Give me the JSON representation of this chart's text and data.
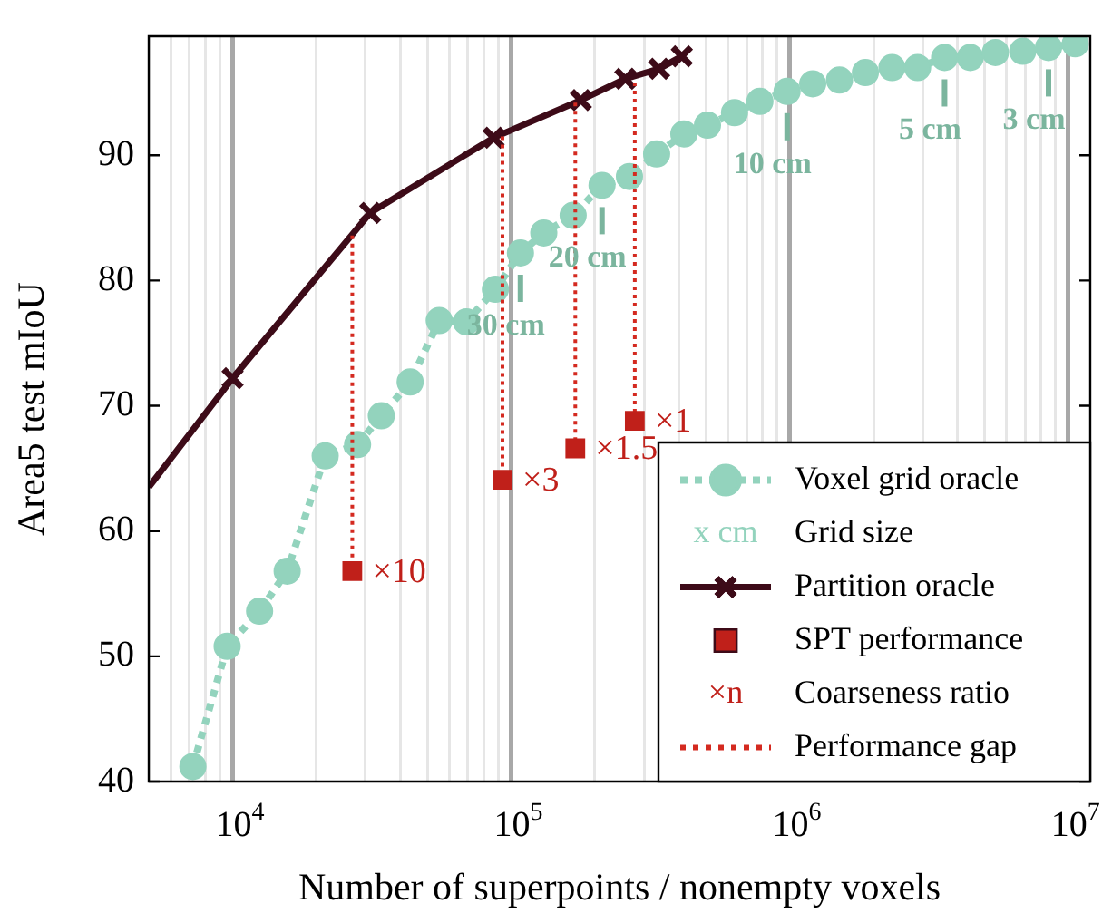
{
  "chart_data": {
    "type": "line",
    "xlabel": "Number of superpoints / nonempty voxels",
    "ylabel": "Area5 test mIoU",
    "log": "x",
    "grid": "x",
    "legend": "bottom right",
    "xlim": [
      5000,
      12000000
    ],
    "ylim": [
      40,
      99.5
    ],
    "xticks": [
      {
        "value": 5000,
        "label": null
      },
      {
        "value": 6000,
        "label": null
      },
      {
        "value": 7000,
        "label": null
      },
      {
        "value": 8000,
        "label": null
      },
      {
        "value": 9000,
        "label": null
      },
      {
        "value": 10000,
        "label": "10$^{4}$"
      },
      {
        "value": 20000,
        "label": null
      },
      {
        "value": 30000,
        "label": null
      },
      {
        "value": 40000,
        "label": null
      },
      {
        "value": 50000,
        "label": null
      },
      {
        "value": 60000,
        "label": null
      },
      {
        "value": 70000,
        "label": null
      },
      {
        "value": 80000,
        "label": null
      },
      {
        "value": 90000,
        "label": null
      },
      {
        "value": 100000,
        "label": "10$^{5}$"
      },
      {
        "value": 200000,
        "label": null
      },
      {
        "value": 300000,
        "label": null
      },
      {
        "value": 400000,
        "label": null
      },
      {
        "value": 500000,
        "label": null
      },
      {
        "value": 600000,
        "label": null
      },
      {
        "value": 700000,
        "label": null
      },
      {
        "value": 800000,
        "label": null
      },
      {
        "value": 900000,
        "label": null
      },
      {
        "value": 1000000,
        "label": "10$^{6}$"
      },
      {
        "value": 2000000,
        "label": null
      },
      {
        "value": 3000000,
        "label": null
      },
      {
        "value": 4000000,
        "label": null
      },
      {
        "value": 5000000,
        "label": null
      },
      {
        "value": 6000000,
        "label": null
      },
      {
        "value": 7000000,
        "label": null
      },
      {
        "value": 8000000,
        "label": null
      },
      {
        "value": 9000000,
        "label": null
      },
      {
        "value": 10000000,
        "label": "10$^{7}$"
      }
    ],
    "yticks": [
      40,
      50,
      60,
      70,
      80,
      90
    ],
    "series": [
      {
        "name": "Voxel grid oracle",
        "color": "#93d3bd",
        "marker": "circle",
        "line_style": "dotted",
        "x": [
          7200,
          9560,
          12500,
          15700,
          21500,
          28100,
          34200,
          43400,
          55200,
          69100,
          87800,
          108000,
          131000,
          167000,
          212000,
          266000,
          333000,
          417000,
          507000,
          634000,
          782000,
          979000,
          1210000,
          1510000,
          1870000,
          2330000,
          2880000,
          3600000,
          4450000,
          5480000,
          6870000,
          8500000,
          10600000
        ],
        "values": [
          41.2,
          50.8,
          53.6,
          56.8,
          66.0,
          66.9,
          69.2,
          71.9,
          76.8,
          76.7,
          79.3,
          82.2,
          83.8,
          85.2,
          87.6,
          88.3,
          90.1,
          91.7,
          92.4,
          93.4,
          94.3,
          95.1,
          95.7,
          96.0,
          96.6,
          97.0,
          97.0,
          97.8,
          97.8,
          98.2,
          98.3,
          98.6,
          98.9
        ]
      },
      {
        "name": "Partition oracle",
        "color": "#3d0b18",
        "marker": "cross",
        "line_style": "solid",
        "x": [
          5000,
          10000,
          31200,
          86500,
          178000,
          257000,
          340000,
          410000
        ],
        "values": [
          63.5,
          72.2,
          85.4,
          91.4,
          94.4,
          96.1,
          96.9,
          97.9
        ]
      },
      {
        "name": "SPT performance",
        "type": "scatter",
        "color": "#c0201a",
        "marker": "square",
        "x": [
          26900,
          93100,
          170000,
          278000
        ],
        "values": [
          56.8,
          64.1,
          66.6,
          68.8
        ]
      },
      {
        "name": "Performance gap",
        "color": "#d42a20",
        "marker": "none",
        "line_style": "dotted",
        "x": [
          26900,
          26900
        ],
        "values": [
          83.6,
          56.8
        ]
      },
      {
        "color": "#d42a20",
        "marker": "none",
        "line_style": "dotted",
        "x": [
          93100,
          93100
        ],
        "values": [
          91.5,
          64.1
        ]
      },
      {
        "color": "#d42a20",
        "marker": "none",
        "line_style": "dotted",
        "x": [
          170000,
          170000
        ],
        "values": [
          94.2,
          66.6
        ]
      },
      {
        "color": "#d42a20",
        "marker": "none",
        "line_style": "dotted",
        "x": [
          278000,
          278000
        ],
        "values": [
          95.8,
          68.8
        ]
      }
    ],
    "annotations": [
      {
        "text": "30 cm",
        "x": 108000,
        "y": 82.2
      },
      {
        "text": "20 cm",
        "x": 212000,
        "y": 87.6
      },
      {
        "text": "10 cm",
        "x": 979000,
        "y": 95.1
      },
      {
        "text": "5 cm",
        "x": 3600000,
        "y": 97.8
      },
      {
        "text": "3 cm",
        "x": 8500000,
        "y": 98.6
      },
      {
        "text": "×10",
        "x": 26900,
        "y": 56.8
      },
      {
        "text": "×3",
        "x": 93100,
        "y": 64.1
      },
      {
        "text": "×1.5",
        "x": 170000,
        "y": 66.6
      },
      {
        "text": "×1",
        "x": 278000,
        "y": 68.8
      },
      "x cm",
      "Grid size",
      "×n",
      "Coarseness ratio"
    ]
  }
}
